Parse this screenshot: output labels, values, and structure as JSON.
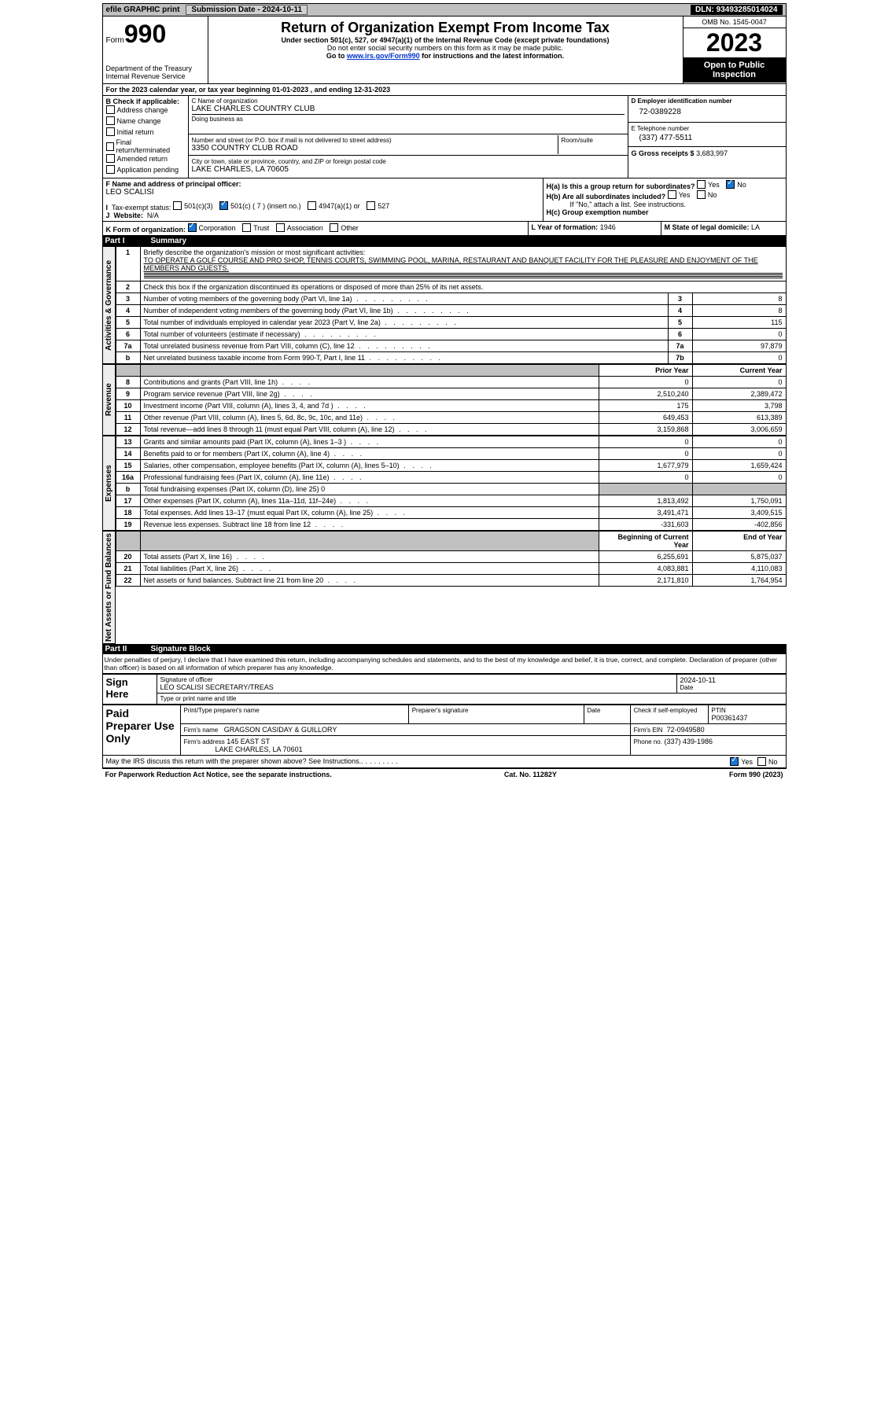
{
  "topbar": {
    "efile": "efile GRAPHIC print",
    "submission": "Submission Date - 2024-10-11",
    "dln": "DLN: 93493285014024"
  },
  "header": {
    "formlabel": "Form",
    "form": "990",
    "dept": "Department of the Treasury\nInternal Revenue Service",
    "title": "Return of Organization Exempt From Income Tax",
    "sub": "Under section 501(c), 527, or 4947(a)(1) of the Internal Revenue Code (except private foundations)",
    "line1": "Do not enter social security numbers on this form as it may be made public.",
    "line2pre": "Go to ",
    "line2link": "www.irs.gov/Form990",
    "line2post": " for instructions and the latest information.",
    "omb": "OMB No. 1545-0047",
    "year": "2023",
    "inspection": "Open to Public Inspection"
  },
  "periodA": "For the 2023 calendar year, or tax year beginning 01-01-2023 , and ending 12-31-2023",
  "B": {
    "title": "B Check if applicable:",
    "opts": [
      "Address change",
      "Name change",
      "Initial return",
      "Final return/terminated",
      "Amended return",
      "Application pending"
    ]
  },
  "C": {
    "nameLabel": "C Name of organization",
    "name": "LAKE CHARLES COUNTRY CLUB",
    "dbaLabel": "Doing business as",
    "addrLabel": "Number and street (or P.O. box if mail is not delivered to street address)",
    "addr": "3350 COUNTRY CLUB ROAD",
    "roomLabel": "Room/suite",
    "cityLabel": "City or town, state or province, country, and ZIP or foreign postal code",
    "city": "LAKE CHARLES, LA  70605"
  },
  "D": {
    "label": "D Employer identification number",
    "val": "72-0389228"
  },
  "E": {
    "label": "E Telephone number",
    "val": "(337) 477-5511"
  },
  "G": {
    "label": "G Gross receipts $",
    "val": "3,683,997"
  },
  "F": {
    "label": "F  Name and address of principal officer:",
    "val": "LEO SCALISI"
  },
  "H": {
    "a": "H(a)  Is this a group return for subordinates?",
    "b": "H(b)  Are all subordinates included?",
    "note": "If \"No,\" attach a list. See instructions.",
    "c": "H(c)  Group exemption number",
    "yes": "Yes",
    "no": "No"
  },
  "I": {
    "label": "Tax-exempt status:",
    "o1": "501(c)(3)",
    "o2": "501(c) ( 7 ) (insert no.)",
    "o3": "4947(a)(1) or",
    "o4": "527"
  },
  "J": {
    "label": "Website:",
    "val": "N/A"
  },
  "K": {
    "label": "K Form of organization:",
    "opts": [
      "Corporation",
      "Trust",
      "Association",
      "Other"
    ]
  },
  "L": {
    "label": "L Year of formation:",
    "val": "1946"
  },
  "M": {
    "label": "M State of legal domicile:",
    "val": "LA"
  },
  "part1": {
    "pn": "Part I",
    "pt": "Summary"
  },
  "summary": {
    "q1": "Briefly describe the organization's mission or most significant activities:",
    "mission": "TO OPERATE A GOLF COURSE AND PRO SHOP, TENNIS COURTS, SWIMMING POOL, MARINA, RESTAURANT AND BANQUET FACILITY FOR THE PLEASURE AND ENJOYMENT OF THE MEMBERS AND GUESTS.",
    "q2": "Check this box      if the organization discontinued its operations or disposed of more than 25% of its net assets.",
    "rows1": [
      {
        "n": "3",
        "t": "Number of voting members of the governing body (Part VI, line 1a)",
        "k": "3",
        "v": "8"
      },
      {
        "n": "4",
        "t": "Number of independent voting members of the governing body (Part VI, line 1b)",
        "k": "4",
        "v": "8"
      },
      {
        "n": "5",
        "t": "Total number of individuals employed in calendar year 2023 (Part V, line 2a)",
        "k": "5",
        "v": "115"
      },
      {
        "n": "6",
        "t": "Total number of volunteers (estimate if necessary)",
        "k": "6",
        "v": "0"
      },
      {
        "n": "7a",
        "t": "Total unrelated business revenue from Part VIII, column (C), line 12",
        "k": "7a",
        "v": "97,879"
      },
      {
        "n": "b",
        "t": "Net unrelated business taxable income from Form 990-T, Part I, line 11",
        "k": "7b",
        "v": "0"
      }
    ],
    "hPrior": "Prior Year",
    "hCurrent": "Current Year",
    "hBeg": "Beginning of Current Year",
    "hEnd": "End of Year",
    "revenue": [
      {
        "n": "8",
        "t": "Contributions and grants (Part VIII, line 1h)",
        "p": "0",
        "c": "0"
      },
      {
        "n": "9",
        "t": "Program service revenue (Part VIII, line 2g)",
        "p": "2,510,240",
        "c": "2,389,472"
      },
      {
        "n": "10",
        "t": "Investment income (Part VIII, column (A), lines 3, 4, and 7d )",
        "p": "175",
        "c": "3,798"
      },
      {
        "n": "11",
        "t": "Other revenue (Part VIII, column (A), lines 5, 6d, 8c, 9c, 10c, and 11e)",
        "p": "649,453",
        "c": "613,389"
      },
      {
        "n": "12",
        "t": "Total revenue—add lines 8 through 11 (must equal Part VIII, column (A), line 12)",
        "p": "3,159,868",
        "c": "3,006,659"
      }
    ],
    "expenses": [
      {
        "n": "13",
        "t": "Grants and similar amounts paid (Part IX, column (A), lines 1–3 )",
        "p": "0",
        "c": "0"
      },
      {
        "n": "14",
        "t": "Benefits paid to or for members (Part IX, column (A), line 4)",
        "p": "0",
        "c": "0"
      },
      {
        "n": "15",
        "t": "Salaries, other compensation, employee benefits (Part IX, column (A), lines 5–10)",
        "p": "1,677,979",
        "c": "1,659,424"
      },
      {
        "n": "16a",
        "t": "Professional fundraising fees (Part IX, column (A), line 11e)",
        "p": "0",
        "c": "0"
      },
      {
        "n": "b",
        "t": "Total fundraising expenses (Part IX, column (D), line 25) 0",
        "shade": true
      },
      {
        "n": "17",
        "t": "Other expenses (Part IX, column (A), lines 11a–11d, 11f–24e)",
        "p": "1,813,492",
        "c": "1,750,091"
      },
      {
        "n": "18",
        "t": "Total expenses. Add lines 13–17 (must equal Part IX, column (A), line 25)",
        "p": "3,491,471",
        "c": "3,409,515"
      },
      {
        "n": "19",
        "t": "Revenue less expenses. Subtract line 18 from line 12",
        "p": "-331,603",
        "c": "-402,856"
      }
    ],
    "net": [
      {
        "n": "20",
        "t": "Total assets (Part X, line 16)",
        "p": "6,255,691",
        "c": "5,875,037"
      },
      {
        "n": "21",
        "t": "Total liabilities (Part X, line 26)",
        "p": "4,083,881",
        "c": "4,110,083"
      },
      {
        "n": "22",
        "t": "Net assets or fund balances. Subtract line 21 from line 20",
        "p": "2,171,810",
        "c": "1,764,954"
      }
    ],
    "vAct": "Activities & Governance",
    "vRev": "Revenue",
    "vExp": "Expenses",
    "vNet": "Net Assets or Fund Balances"
  },
  "part2": {
    "pn": "Part II",
    "pt": "Signature Block"
  },
  "sig": {
    "decl": "Under penalties of perjury, I declare that I have examined this return, including accompanying schedules and statements, and to the best of my knowledge and belief, it is true, correct, and complete. Declaration of preparer (other than officer) is based on all information of which preparer has any knowledge.",
    "signHere": "Sign Here",
    "sigLabel": "Signature of officer",
    "officer": "LEO SCALISI SECRETARY/TREAS",
    "typeLabel": "Type or print name and title",
    "date": "2024-10-11",
    "paid": "Paid Preparer Use Only",
    "prepName": "Print/Type preparer's name",
    "prepSig": "Preparer's signature",
    "dateLbl": "Date",
    "selfEmp": "Check      if self-employed",
    "ptinLbl": "PTIN",
    "ptin": "P00361437",
    "firmLbl": "Firm's name",
    "firm": "GRAGSON CASIDAY & GUILLORY",
    "einLbl": "Firm's EIN",
    "ein": "72-0949580",
    "addrLbl": "Firm's address",
    "addr": "145 EAST ST",
    "city": "LAKE CHARLES, LA  70601",
    "phoneLbl": "Phone no.",
    "phone": "(337) 439-1986",
    "discuss": "May the IRS discuss this return with the preparer shown above? See Instructions.",
    "yes": "Yes",
    "no": "No"
  },
  "footer": {
    "pra": "For Paperwork Reduction Act Notice, see the separate instructions.",
    "cat": "Cat. No. 11282Y",
    "formyear": "Form 990 (2023)"
  }
}
